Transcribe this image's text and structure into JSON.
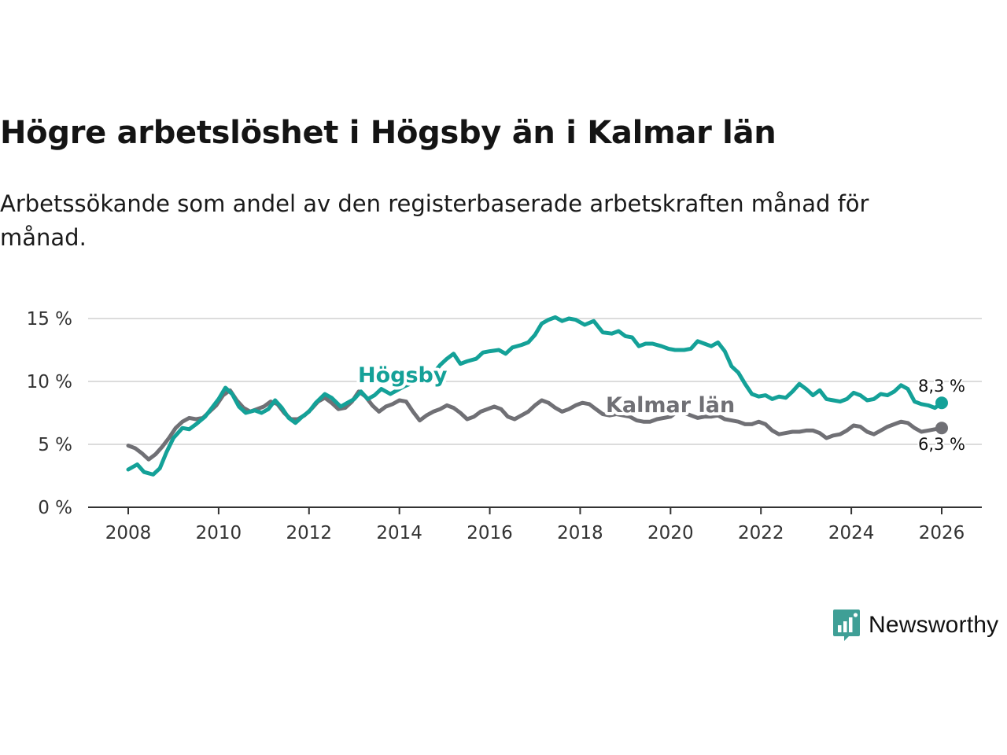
{
  "title": "Högre arbetslöshet i Högsby än i Kalmar län",
  "subtitle": "Arbetssökande som andel av den registerbaserade arbetskraften månad för månad.",
  "colors": {
    "hogsby": "#14a198",
    "kalmar": "#707075",
    "grid": "#dcdcdc",
    "axis": "#333333",
    "brand": "#3f9f96"
  },
  "brand": {
    "name": "Newsworthy",
    "icon": "chart-bubble-icon"
  },
  "chart_data": {
    "type": "line",
    "title": "Högre arbetslöshet i Högsby än i Kalmar län",
    "xlabel": "",
    "ylabel": "",
    "xlim": [
      2008,
      2026
    ],
    "ylim": [
      0,
      15
    ],
    "x_ticks": [
      2008,
      2010,
      2012,
      2014,
      2016,
      2018,
      2020,
      2022,
      2024,
      2026
    ],
    "y_ticks": [
      0,
      5,
      10,
      15
    ],
    "y_tick_labels": [
      "0 %",
      "5 %",
      "10 %",
      "15 %"
    ],
    "grid": true,
    "series": [
      {
        "name": "Högsby",
        "label": "Högsby",
        "end_label": "8,3 %",
        "points": [
          [
            2008.0,
            3.0
          ],
          [
            2008.2,
            3.4
          ],
          [
            2008.35,
            2.8
          ],
          [
            2008.55,
            2.6
          ],
          [
            2008.7,
            3.1
          ],
          [
            2008.85,
            4.4
          ],
          [
            2009.0,
            5.5
          ],
          [
            2009.2,
            6.3
          ],
          [
            2009.35,
            6.2
          ],
          [
            2009.5,
            6.6
          ],
          [
            2009.7,
            7.2
          ],
          [
            2009.85,
            7.9
          ],
          [
            2010.0,
            8.6
          ],
          [
            2010.15,
            9.5
          ],
          [
            2010.3,
            9.0
          ],
          [
            2010.45,
            8.0
          ],
          [
            2010.6,
            7.5
          ],
          [
            2010.8,
            7.7
          ],
          [
            2010.95,
            7.5
          ],
          [
            2011.1,
            7.8
          ],
          [
            2011.25,
            8.5
          ],
          [
            2011.4,
            7.9
          ],
          [
            2011.55,
            7.1
          ],
          [
            2011.7,
            6.7
          ],
          [
            2011.85,
            7.2
          ],
          [
            2012.0,
            7.6
          ],
          [
            2012.15,
            8.3
          ],
          [
            2012.35,
            9.0
          ],
          [
            2012.5,
            8.7
          ],
          [
            2012.7,
            8.0
          ],
          [
            2012.85,
            8.3
          ],
          [
            2013.0,
            8.6
          ],
          [
            2013.15,
            9.2
          ],
          [
            2013.3,
            8.6
          ],
          [
            2013.45,
            8.9
          ],
          [
            2013.6,
            9.4
          ],
          [
            2013.8,
            9.0
          ],
          [
            2013.95,
            9.3
          ],
          [
            2014.1,
            9.6
          ],
          [
            2014.3,
            9.9
          ],
          [
            2014.5,
            10.0
          ],
          [
            2014.7,
            10.4
          ],
          [
            2014.9,
            11.3
          ],
          [
            2015.05,
            11.8
          ],
          [
            2015.2,
            12.2
          ],
          [
            2015.35,
            11.4
          ],
          [
            2015.5,
            11.6
          ],
          [
            2015.7,
            11.8
          ],
          [
            2015.85,
            12.3
          ],
          [
            2016.0,
            12.4
          ],
          [
            2016.2,
            12.5
          ],
          [
            2016.35,
            12.2
          ],
          [
            2016.5,
            12.7
          ],
          [
            2016.7,
            12.9
          ],
          [
            2016.85,
            13.1
          ],
          [
            2017.0,
            13.7
          ],
          [
            2017.15,
            14.6
          ],
          [
            2017.3,
            14.9
          ],
          [
            2017.45,
            15.1
          ],
          [
            2017.6,
            14.8
          ],
          [
            2017.75,
            15.0
          ],
          [
            2017.9,
            14.9
          ],
          [
            2018.1,
            14.5
          ],
          [
            2018.3,
            14.8
          ],
          [
            2018.5,
            13.9
          ],
          [
            2018.7,
            13.8
          ],
          [
            2018.85,
            14.0
          ],
          [
            2019.0,
            13.6
          ],
          [
            2019.15,
            13.5
          ],
          [
            2019.3,
            12.8
          ],
          [
            2019.45,
            13.0
          ],
          [
            2019.6,
            13.0
          ],
          [
            2019.8,
            12.8
          ],
          [
            2019.95,
            12.6
          ],
          [
            2020.1,
            12.5
          ],
          [
            2020.3,
            12.5
          ],
          [
            2020.45,
            12.6
          ],
          [
            2020.6,
            13.2
          ],
          [
            2020.75,
            13.0
          ],
          [
            2020.9,
            12.8
          ],
          [
            2021.05,
            13.1
          ],
          [
            2021.2,
            12.4
          ],
          [
            2021.35,
            11.2
          ],
          [
            2021.5,
            10.7
          ],
          [
            2021.65,
            9.8
          ],
          [
            2021.8,
            9.0
          ],
          [
            2021.95,
            8.8
          ],
          [
            2022.1,
            8.9
          ],
          [
            2022.25,
            8.6
          ],
          [
            2022.4,
            8.8
          ],
          [
            2022.55,
            8.7
          ],
          [
            2022.7,
            9.2
          ],
          [
            2022.85,
            9.8
          ],
          [
            2023.0,
            9.4
          ],
          [
            2023.15,
            8.9
          ],
          [
            2023.3,
            9.3
          ],
          [
            2023.45,
            8.6
          ],
          [
            2023.6,
            8.5
          ],
          [
            2023.75,
            8.4
          ],
          [
            2023.9,
            8.6
          ],
          [
            2024.05,
            9.1
          ],
          [
            2024.2,
            8.9
          ],
          [
            2024.35,
            8.5
          ],
          [
            2024.5,
            8.6
          ],
          [
            2024.65,
            9.0
          ],
          [
            2024.8,
            8.9
          ],
          [
            2024.95,
            9.2
          ],
          [
            2025.1,
            9.7
          ],
          [
            2025.25,
            9.4
          ],
          [
            2025.4,
            8.4
          ],
          [
            2025.55,
            8.2
          ],
          [
            2025.7,
            8.1
          ],
          [
            2025.85,
            7.9
          ],
          [
            2026.0,
            8.3
          ]
        ]
      },
      {
        "name": "Kalmar län",
        "label": "Kalmar län",
        "end_label": "6,3 %",
        "points": [
          [
            2008.0,
            4.9
          ],
          [
            2008.15,
            4.7
          ],
          [
            2008.3,
            4.3
          ],
          [
            2008.45,
            3.8
          ],
          [
            2008.6,
            4.2
          ],
          [
            2008.75,
            4.8
          ],
          [
            2008.9,
            5.5
          ],
          [
            2009.05,
            6.3
          ],
          [
            2009.2,
            6.8
          ],
          [
            2009.35,
            7.1
          ],
          [
            2009.5,
            7.0
          ],
          [
            2009.65,
            7.1
          ],
          [
            2009.8,
            7.6
          ],
          [
            2009.95,
            8.1
          ],
          [
            2010.1,
            8.9
          ],
          [
            2010.25,
            9.3
          ],
          [
            2010.4,
            8.5
          ],
          [
            2010.55,
            7.9
          ],
          [
            2010.7,
            7.6
          ],
          [
            2010.85,
            7.8
          ],
          [
            2011.0,
            8.0
          ],
          [
            2011.15,
            8.4
          ],
          [
            2011.3,
            8.2
          ],
          [
            2011.45,
            7.5
          ],
          [
            2011.6,
            7.0
          ],
          [
            2011.75,
            7.0
          ],
          [
            2011.9,
            7.3
          ],
          [
            2012.05,
            7.8
          ],
          [
            2012.2,
            8.4
          ],
          [
            2012.35,
            8.7
          ],
          [
            2012.5,
            8.3
          ],
          [
            2012.65,
            7.8
          ],
          [
            2012.8,
            7.9
          ],
          [
            2012.95,
            8.4
          ],
          [
            2013.1,
            9.2
          ],
          [
            2013.25,
            8.8
          ],
          [
            2013.4,
            8.1
          ],
          [
            2013.55,
            7.6
          ],
          [
            2013.7,
            8.0
          ],
          [
            2013.85,
            8.2
          ],
          [
            2014.0,
            8.5
          ],
          [
            2014.15,
            8.4
          ],
          [
            2014.3,
            7.6
          ],
          [
            2014.45,
            6.9
          ],
          [
            2014.6,
            7.3
          ],
          [
            2014.75,
            7.6
          ],
          [
            2014.9,
            7.8
          ],
          [
            2015.05,
            8.1
          ],
          [
            2015.2,
            7.9
          ],
          [
            2015.35,
            7.5
          ],
          [
            2015.5,
            7.0
          ],
          [
            2015.65,
            7.2
          ],
          [
            2015.8,
            7.6
          ],
          [
            2015.95,
            7.8
          ],
          [
            2016.1,
            8.0
          ],
          [
            2016.25,
            7.8
          ],
          [
            2016.4,
            7.2
          ],
          [
            2016.55,
            7.0
          ],
          [
            2016.7,
            7.3
          ],
          [
            2016.85,
            7.6
          ],
          [
            2017.0,
            8.1
          ],
          [
            2017.15,
            8.5
          ],
          [
            2017.3,
            8.3
          ],
          [
            2017.45,
            7.9
          ],
          [
            2017.6,
            7.6
          ],
          [
            2017.75,
            7.8
          ],
          [
            2017.9,
            8.1
          ],
          [
            2018.05,
            8.3
          ],
          [
            2018.2,
            8.2
          ],
          [
            2018.35,
            7.8
          ],
          [
            2018.5,
            7.4
          ],
          [
            2018.65,
            7.3
          ],
          [
            2018.8,
            7.4
          ],
          [
            2018.95,
            7.3
          ],
          [
            2019.1,
            7.2
          ],
          [
            2019.25,
            6.9
          ],
          [
            2019.4,
            6.8
          ],
          [
            2019.55,
            6.8
          ],
          [
            2019.7,
            7.0
          ],
          [
            2019.85,
            7.1
          ],
          [
            2020.0,
            7.2
          ],
          [
            2020.15,
            7.6
          ],
          [
            2020.3,
            7.5
          ],
          [
            2020.45,
            7.3
          ],
          [
            2020.6,
            7.1
          ],
          [
            2020.75,
            7.2
          ],
          [
            2020.9,
            7.2
          ],
          [
            2021.05,
            7.3
          ],
          [
            2021.2,
            7.0
          ],
          [
            2021.35,
            6.9
          ],
          [
            2021.5,
            6.8
          ],
          [
            2021.65,
            6.6
          ],
          [
            2021.8,
            6.6
          ],
          [
            2021.95,
            6.8
          ],
          [
            2022.1,
            6.6
          ],
          [
            2022.25,
            6.1
          ],
          [
            2022.4,
            5.8
          ],
          [
            2022.55,
            5.9
          ],
          [
            2022.7,
            6.0
          ],
          [
            2022.85,
            6.0
          ],
          [
            2023.0,
            6.1
          ],
          [
            2023.15,
            6.1
          ],
          [
            2023.3,
            5.9
          ],
          [
            2023.45,
            5.5
          ],
          [
            2023.6,
            5.7
          ],
          [
            2023.75,
            5.8
          ],
          [
            2023.9,
            6.1
          ],
          [
            2024.05,
            6.5
          ],
          [
            2024.2,
            6.4
          ],
          [
            2024.35,
            6.0
          ],
          [
            2024.5,
            5.8
          ],
          [
            2024.65,
            6.1
          ],
          [
            2024.8,
            6.4
          ],
          [
            2024.95,
            6.6
          ],
          [
            2025.1,
            6.8
          ],
          [
            2025.25,
            6.7
          ],
          [
            2025.4,
            6.3
          ],
          [
            2025.55,
            6.0
          ],
          [
            2025.7,
            6.1
          ],
          [
            2025.85,
            6.2
          ],
          [
            2026.0,
            6.3
          ]
        ]
      }
    ]
  }
}
